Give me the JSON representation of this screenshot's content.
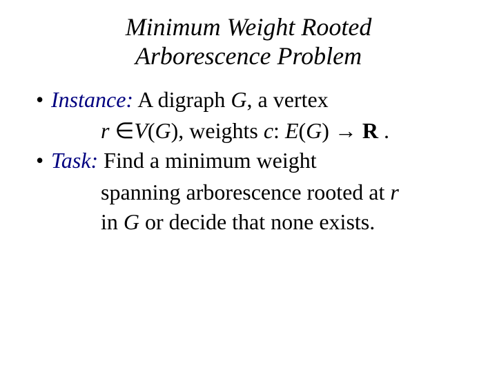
{
  "title_line1": "Minimum Weight Rooted",
  "title_line2": "Arborescence Problem",
  "instance": {
    "label": "Instance:",
    "line1_a": " A digraph ",
    "line1_G": "G",
    "line1_b": ", a vertex",
    "line2_r": "r ",
    "line2_in": "∈",
    "line2_V": "V",
    "line2_p1": "(",
    "line2_G2": "G",
    "line2_p2": "), weights ",
    "line2_c": "c",
    "line2_colon": ": ",
    "line2_E": "E",
    "line2_p3": "(",
    "line2_G3": "G",
    "line2_p4": ") → ",
    "line2_R": "R",
    "line2_end": " ."
  },
  "task": {
    "label": "Task:",
    "line1": " Find a minimum weight",
    "line2_a": "spanning arborescence rooted at ",
    "line2_r": "r",
    "line3_a": "in ",
    "line3_G": "G",
    "line3_b": " or decide that none exists."
  },
  "bullet": "•"
}
